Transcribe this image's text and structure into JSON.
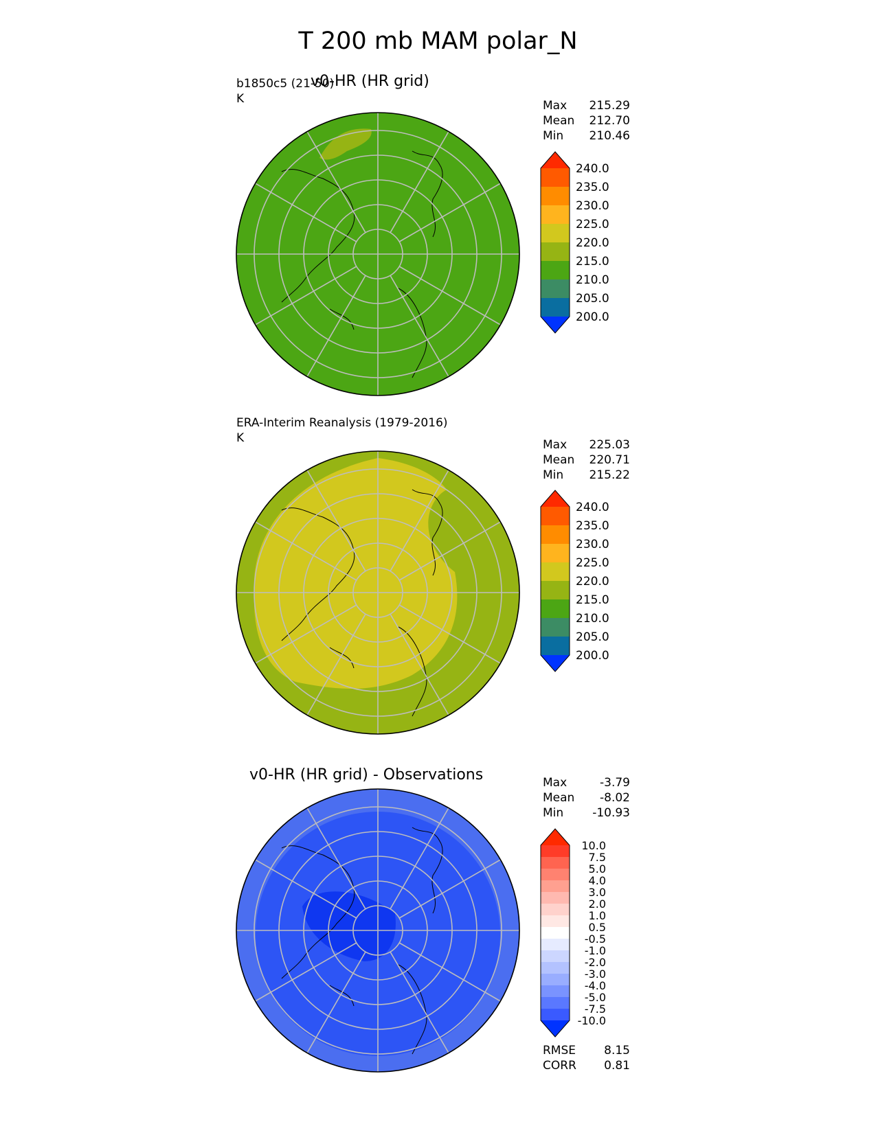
{
  "figure": {
    "title": "T 200 mb MAM polar_N"
  },
  "panels": [
    {
      "title": "v0-HR (HR grid)",
      "left_label": "b1850c5 (21-50)",
      "units": "K",
      "stats": [
        {
          "name": "Max",
          "value": "215.29"
        },
        {
          "name": "Mean",
          "value": "212.70"
        },
        {
          "name": "Min",
          "value": "210.46"
        }
      ],
      "fill_color": "#4ca614",
      "colorbar": {
        "ticks": [
          "240.0",
          "235.0",
          "230.0",
          "225.0",
          "220.0",
          "215.0",
          "210.0",
          "205.0",
          "200.0"
        ],
        "over_color": "#ff2a00",
        "under_color": "#0033ff",
        "band_colors": [
          "#ff5a00",
          "#ff8c00",
          "#ffb41e",
          "#d2c81e",
          "#96b414",
          "#4ca614",
          "#3c8c64",
          "#0a6ea0"
        ]
      }
    },
    {
      "title": "",
      "left_label": "ERA-Interim Reanalysis (1979-2016)",
      "units": "K",
      "stats": [
        {
          "name": "Max",
          "value": "225.03"
        },
        {
          "name": "Mean",
          "value": "220.71"
        },
        {
          "name": "Min",
          "value": "215.22"
        }
      ],
      "fill_color": "#d2c81e",
      "outer_fill_color": "#96b414",
      "colorbar": {
        "ticks": [
          "240.0",
          "235.0",
          "230.0",
          "225.0",
          "220.0",
          "215.0",
          "210.0",
          "205.0",
          "200.0"
        ],
        "over_color": "#ff2a00",
        "under_color": "#0033ff",
        "band_colors": [
          "#ff5a00",
          "#ff8c00",
          "#ffb41e",
          "#d2c81e",
          "#96b414",
          "#4ca614",
          "#3c8c64",
          "#0a6ea0"
        ]
      }
    },
    {
      "title": "v0-HR (HR grid) - Observations",
      "left_label": "",
      "units": "",
      "stats": [
        {
          "name": "Max",
          "value": "-3.79"
        },
        {
          "name": "Mean",
          "value": "-8.02"
        },
        {
          "name": "Min",
          "value": "-10.93"
        }
      ],
      "fill_color": "#2d55f5",
      "outer_fill_color": "#4b6ef0",
      "inner_fill_color": "#0f37f0",
      "colorbar": {
        "ticks": [
          "10.0",
          "7.5",
          "5.0",
          "4.0",
          "3.0",
          "2.0",
          "1.0",
          "0.5",
          "-0.5",
          "-1.0",
          "-2.0",
          "-3.0",
          "-4.0",
          "-5.0",
          "-7.5",
          "-10.0"
        ],
        "over_color": "#ff2a00",
        "under_color": "#0033ff",
        "band_colors": [
          "#ff3c28",
          "#ff6450",
          "#ff8270",
          "#ffa090",
          "#ffb9b0",
          "#ffd2cc",
          "#ffe8e4",
          "#ffffff",
          "#e6ebff",
          "#ccd6ff",
          "#b3c2ff",
          "#99adff",
          "#7a93ff",
          "#5a78ff",
          "#3a5aff"
        ]
      },
      "metrics": [
        {
          "name": "RMSE",
          "value": "8.15"
        },
        {
          "name": "CORR",
          "value": "0.81"
        }
      ]
    }
  ],
  "chart_data": [
    {
      "type": "heatmap",
      "title": "v0-HR (HR grid)",
      "subtitle": "b1850c5 (21-50)",
      "units": "K",
      "projection": "polar north",
      "field_range": [
        210.46,
        215.29
      ],
      "mean": 212.7,
      "color_levels": [
        200.0,
        205.0,
        210.0,
        215.0,
        220.0,
        225.0,
        230.0,
        235.0,
        240.0
      ]
    },
    {
      "type": "heatmap",
      "title": "",
      "subtitle": "ERA-Interim Reanalysis (1979-2016)",
      "units": "K",
      "projection": "polar north",
      "field_range": [
        215.22,
        225.03
      ],
      "mean": 220.71,
      "color_levels": [
        200.0,
        205.0,
        210.0,
        215.0,
        220.0,
        225.0,
        230.0,
        235.0,
        240.0
      ]
    },
    {
      "type": "heatmap",
      "title": "v0-HR (HR grid) - Observations",
      "projection": "polar north",
      "field_range": [
        -10.93,
        -3.79
      ],
      "mean": -8.02,
      "rmse": 8.15,
      "corr": 0.81,
      "color_levels": [
        -10.0,
        -7.5,
        -5.0,
        -4.0,
        -3.0,
        -2.0,
        -1.0,
        -0.5,
        0.5,
        1.0,
        2.0,
        3.0,
        4.0,
        5.0,
        7.5,
        10.0
      ]
    }
  ]
}
